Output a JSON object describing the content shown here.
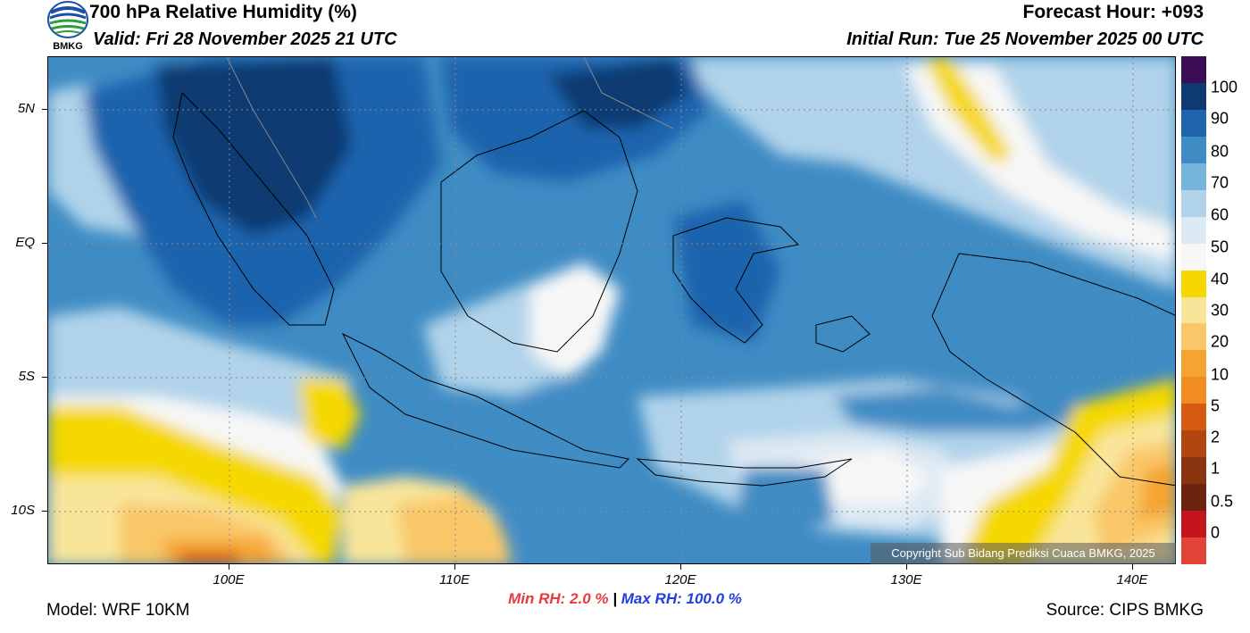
{
  "header": {
    "title": "700 hPa Relative Humidity (%)",
    "valid": "Valid: Fri 28 November 2025 21 UTC",
    "forecast_hour": "Forecast Hour: +093",
    "initial_run": "Initial Run: Tue 25 November 2025 00 UTC",
    "logo_text": "BMKG"
  },
  "axes": {
    "lat_labels": [
      "5N",
      "EQ",
      "5S",
      "10S"
    ],
    "lon_labels": [
      "100E",
      "110E",
      "120E",
      "130E",
      "140E"
    ]
  },
  "colorbar": {
    "labels": [
      "100",
      "90",
      "80",
      "70",
      "60",
      "50",
      "40",
      "30",
      "20",
      "10",
      "5",
      "2",
      "1",
      "0.5",
      "0"
    ],
    "colors": [
      "#3b0d55",
      "#0e3a72",
      "#1f63ad",
      "#3f8cc4",
      "#77b4dc",
      "#b0d3ea",
      "#dde9f3",
      "#f7f7f7",
      "#f5d800",
      "#f9e59a",
      "#f9c768",
      "#f6a431",
      "#f08c22",
      "#d65a10",
      "#b24610",
      "#8a3510",
      "#6b2410",
      "#c4141c",
      "#e04436"
    ]
  },
  "stats": {
    "min_label": "Min RH:",
    "min_value": "2.0 %",
    "separator": "|",
    "max_label": "Max RH: 100.0 %"
  },
  "footer": {
    "model": "Model: WRF 10KM",
    "source": "Source: CIPS BMKG",
    "copyright": "Copyright Sub Bidang Prediksi Cuaca BMKG, 2025"
  }
}
